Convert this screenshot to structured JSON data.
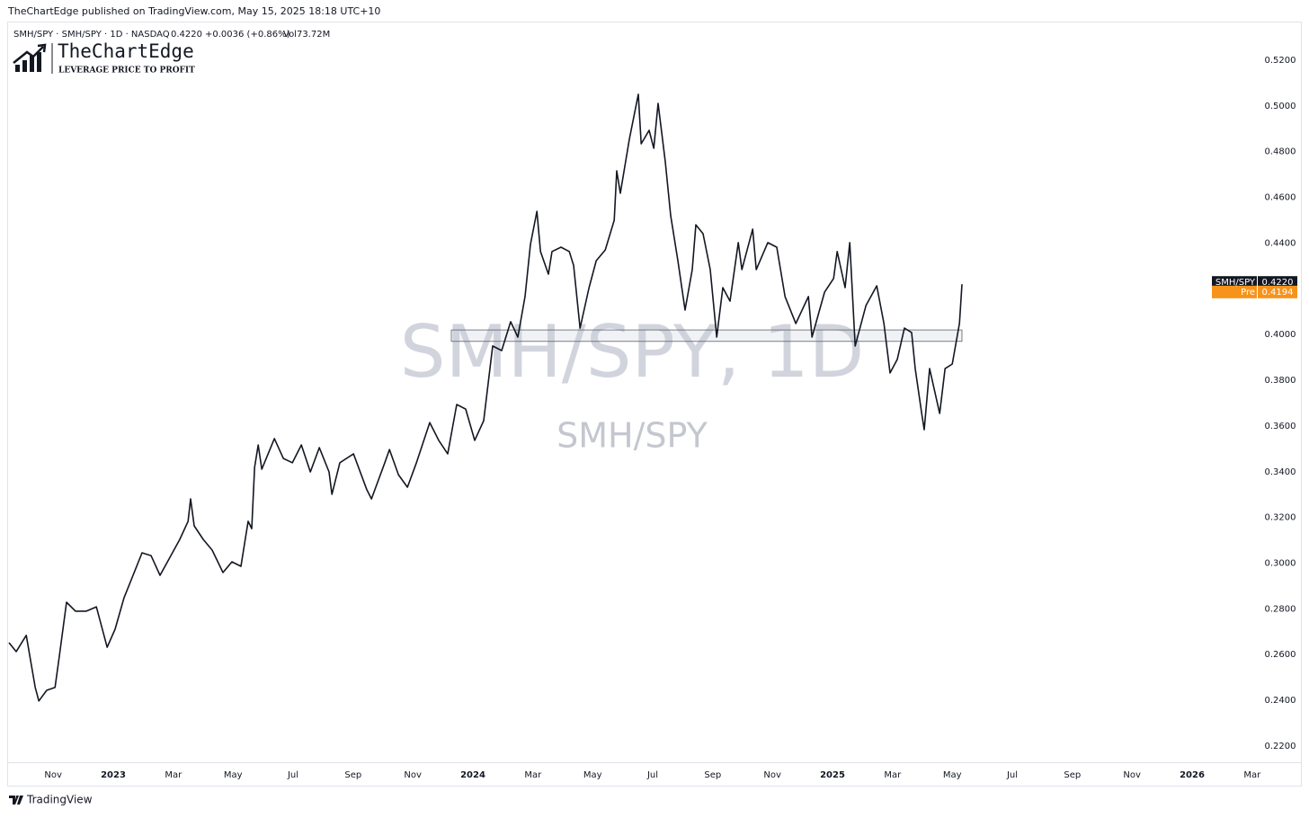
{
  "header": {
    "published": "TheChartEdge published on TradingView.com, May 15, 2025 18:18 UTC+10"
  },
  "legend": {
    "symbol": "SMH/SPY · SMH/SPY · 1D · NASDAQ",
    "last": "0.4220",
    "change": "+0.0036 (+0.86%)",
    "volume": "Vol73.72M"
  },
  "logo": {
    "name": "TheChartEdge",
    "tagline": "LEVERAGE PRICE TO PROFIT"
  },
  "watermark": {
    "title": "SMH/SPY, 1D",
    "subtitle": "SMH/SPY"
  },
  "footer": {
    "brand": "TradingView"
  },
  "chart_data": {
    "type": "line",
    "xlim": [
      2022.71,
      2026.185
    ],
    "ylim": [
      0.2129,
      0.5365
    ],
    "xticks": [
      {
        "value": 2022.833,
        "label": "Nov"
      },
      {
        "value": 2023,
        "label": "2023"
      },
      {
        "value": 2023.167,
        "label": "Mar"
      },
      {
        "value": 2023.333,
        "label": "May"
      },
      {
        "value": 2023.5,
        "label": "Jul"
      },
      {
        "value": 2023.667,
        "label": "Sep"
      },
      {
        "value": 2023.833,
        "label": "Nov"
      },
      {
        "value": 2024,
        "label": "2024"
      },
      {
        "value": 2024.167,
        "label": "Mar"
      },
      {
        "value": 2024.333,
        "label": "May"
      },
      {
        "value": 2024.5,
        "label": "Jul"
      },
      {
        "value": 2024.667,
        "label": "Sep"
      },
      {
        "value": 2024.833,
        "label": "Nov"
      },
      {
        "value": 2025,
        "label": "2025"
      },
      {
        "value": 2025.167,
        "label": "Mar"
      },
      {
        "value": 2025.333,
        "label": "May"
      },
      {
        "value": 2025.5,
        "label": "Jul"
      },
      {
        "value": 2025.667,
        "label": "Sep"
      },
      {
        "value": 2025.833,
        "label": "Nov"
      },
      {
        "value": 2026,
        "label": "2026"
      },
      {
        "value": 2026.167,
        "label": "Mar"
      }
    ],
    "yticks": [
      {
        "value": 0.22,
        "label": "0.2200"
      },
      {
        "value": 0.24,
        "label": "0.2400"
      },
      {
        "value": 0.26,
        "label": "0.2600"
      },
      {
        "value": 0.28,
        "label": "0.2800"
      },
      {
        "value": 0.3,
        "label": "0.3000"
      },
      {
        "value": 0.32,
        "label": "0.3200"
      },
      {
        "value": 0.34,
        "label": "0.3400"
      },
      {
        "value": 0.36,
        "label": "0.3600"
      },
      {
        "value": 0.38,
        "label": "0.3800"
      },
      {
        "value": 0.4,
        "label": "0.4000"
      },
      {
        "value": 0.42,
        "label": "0.4200"
      },
      {
        "value": 0.44,
        "label": "0.4400"
      },
      {
        "value": 0.46,
        "label": "0.4600"
      },
      {
        "value": 0.48,
        "label": "0.4800"
      },
      {
        "value": 0.5,
        "label": "0.5000"
      },
      {
        "value": 0.52,
        "label": "0.5200"
      }
    ],
    "x": [
      2022.71,
      2022.73,
      2022.758,
      2022.783,
      2022.793,
      2022.815,
      2022.838,
      2022.85,
      2022.87,
      2022.895,
      2022.925,
      2022.953,
      2022.983,
      2023.005,
      2023.03,
      2023.055,
      2023.08,
      2023.105,
      2023.13,
      2023.155,
      2023.185,
      2023.208,
      2023.215,
      2023.225,
      2023.25,
      2023.275,
      2023.305,
      2023.33,
      2023.355,
      2023.375,
      2023.385,
      2023.393,
      2023.403,
      2023.413,
      2023.448,
      2023.473,
      2023.498,
      2023.523,
      2023.548,
      2023.573,
      2023.6,
      2023.608,
      2023.63,
      2023.668,
      2023.705,
      2023.718,
      2023.755,
      2023.768,
      2023.793,
      2023.818,
      2023.843,
      2023.88,
      2023.905,
      2023.93,
      2023.955,
      2023.98,
      2024.005,
      2024.03,
      2024.055,
      2024.08,
      2024.105,
      2024.125,
      2024.145,
      2024.16,
      2024.178,
      2024.188,
      2024.21,
      2024.22,
      2024.245,
      2024.268,
      2024.28,
      2024.298,
      2024.323,
      2024.343,
      2024.368,
      2024.393,
      2024.4,
      2024.41,
      2024.435,
      2024.46,
      2024.468,
      2024.49,
      2024.503,
      2024.515,
      2024.535,
      2024.55,
      2024.57,
      2024.59,
      2024.61,
      2024.62,
      2024.64,
      2024.66,
      2024.678,
      2024.695,
      2024.715,
      2024.738,
      2024.748,
      2024.778,
      2024.788,
      2024.82,
      2024.845,
      2024.868,
      2024.898,
      2024.933,
      2024.943,
      2024.978,
      2025.003,
      2025.013,
      2025.035,
      2025.048,
      2025.063,
      2025.093,
      2025.123,
      2025.143,
      2025.16,
      2025.18,
      2025.2,
      2025.22,
      2025.23,
      2025.248,
      2025.255,
      2025.27,
      2025.298,
      2025.313,
      2025.333,
      2025.353,
      2025.36
    ],
    "series": [
      {
        "name": "SMH/SPY",
        "color": "#131722",
        "values": [
          0.2652,
          0.2613,
          0.2684,
          0.2456,
          0.2397,
          0.2444,
          0.2456,
          0.2593,
          0.2829,
          0.279,
          0.279,
          0.2809,
          0.2632,
          0.2711,
          0.2849,
          0.2947,
          0.3045,
          0.3033,
          0.2947,
          0.3018,
          0.3104,
          0.3183,
          0.3281,
          0.3163,
          0.3104,
          0.3057,
          0.2959,
          0.3006,
          0.2986,
          0.3183,
          0.3151,
          0.3419,
          0.3517,
          0.3411,
          0.3545,
          0.3458,
          0.3439,
          0.3517,
          0.3399,
          0.3505,
          0.3399,
          0.3301,
          0.3439,
          0.3478,
          0.3321,
          0.3281,
          0.3439,
          0.3497,
          0.3387,
          0.3332,
          0.3439,
          0.3615,
          0.3537,
          0.3478,
          0.3694,
          0.3674,
          0.3537,
          0.3623,
          0.395,
          0.393,
          0.4056,
          0.3989,
          0.4166,
          0.4394,
          0.4539,
          0.4363,
          0.4264,
          0.4363,
          0.4382,
          0.4363,
          0.4303,
          0.4028,
          0.4205,
          0.4323,
          0.437,
          0.45,
          0.4716,
          0.4618,
          0.4854,
          0.5051,
          0.4834,
          0.4893,
          0.4815,
          0.5011,
          0.4756,
          0.452,
          0.4323,
          0.4107,
          0.4284,
          0.448,
          0.4441,
          0.4284,
          0.3989,
          0.4205,
          0.4146,
          0.4402,
          0.4284,
          0.4461,
          0.4284,
          0.4402,
          0.4382,
          0.4166,
          0.4048,
          0.4166,
          0.3989,
          0.4186,
          0.4245,
          0.4363,
          0.4205,
          0.4402,
          0.395,
          0.4127,
          0.4213,
          0.4048,
          0.3832,
          0.3891,
          0.4028,
          0.4009,
          0.3851,
          0.3655,
          0.3584,
          0.3851,
          0.3655,
          0.3851,
          0.3871,
          0.4048,
          0.422
        ]
      }
    ],
    "zone": {
      "x": [
        2023.94,
        2025.36
      ],
      "y": [
        0.397,
        0.402
      ]
    },
    "price_labels": [
      {
        "name": "SMH/SPY",
        "value": 0.422,
        "label": "0.4220",
        "color": "#131722"
      },
      {
        "name": "Pre",
        "value": 0.4194,
        "label": "0.4194",
        "color": "#f7931a"
      }
    ]
  }
}
